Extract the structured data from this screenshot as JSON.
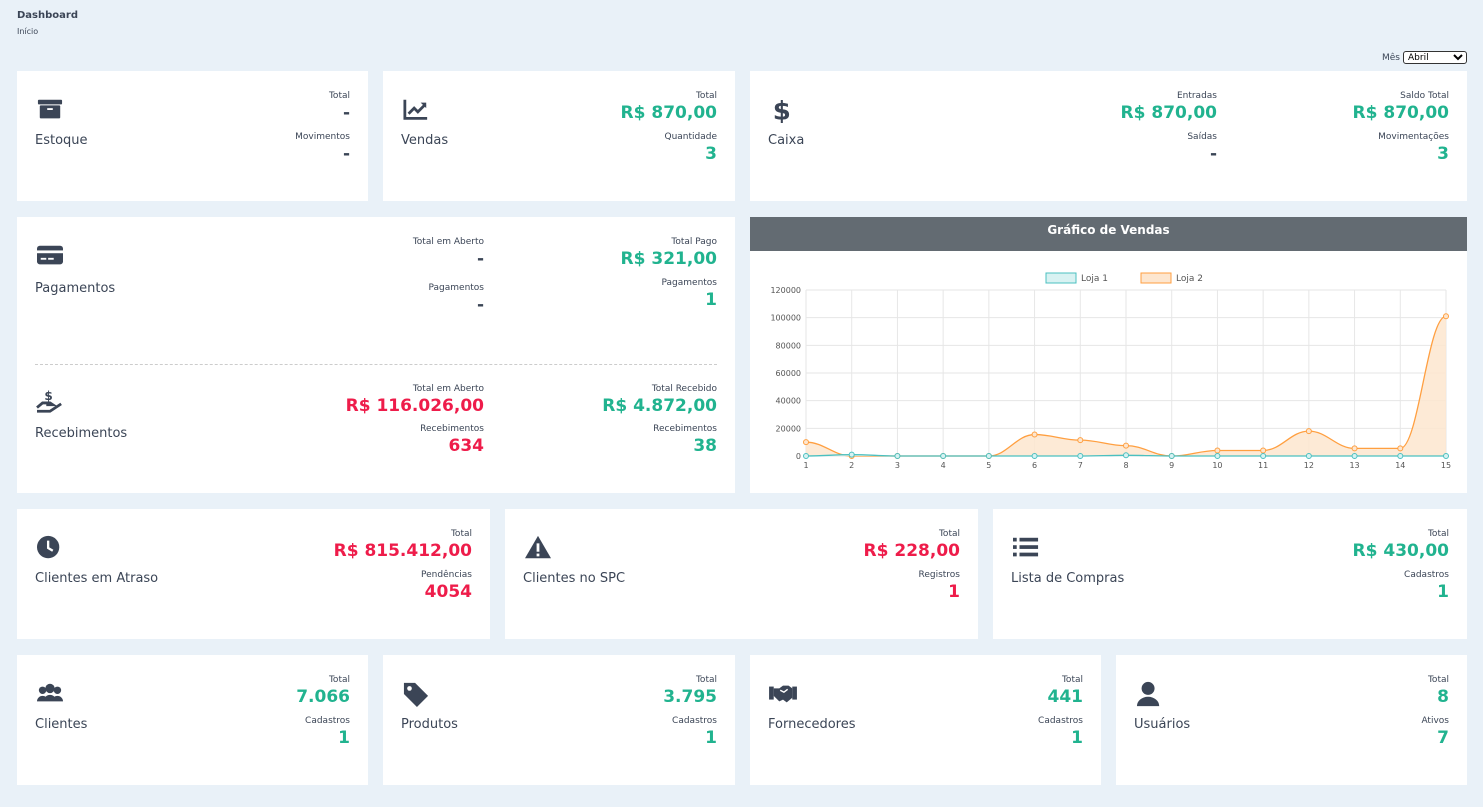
{
  "header": {
    "title": "Dashboard",
    "breadcrumb": "Início",
    "month_label": "Mês",
    "month_value": "Abril"
  },
  "colors": {
    "green": "#21b38f",
    "red": "#ee1c4a",
    "chart_header": "#636b72"
  },
  "estoque": {
    "label": "Estoque",
    "icon": "archive-box-icon",
    "k1": "Total",
    "v1": "-",
    "k2": "Movimentos",
    "v2": "-"
  },
  "vendas": {
    "label": "Vendas",
    "icon": "chart-line-icon",
    "k1": "Total",
    "v1": "R$ 870,00",
    "k2": "Quantidade",
    "v2": "3"
  },
  "caixa": {
    "label": "Caixa",
    "icon": "dollar-icon",
    "k1": "Entradas",
    "v1": "R$ 870,00",
    "k2": "Saídas",
    "v2": "-",
    "k3": "Saldo Total",
    "v3": "R$ 870,00",
    "k4": "Movimentações",
    "v4": "3"
  },
  "pagamentos": {
    "label": "Pagamentos",
    "icon": "credit-card-icon",
    "k1": "Total em Aberto",
    "v1": "-",
    "k2": "Pagamentos",
    "v2": "-",
    "k3": "Total Pago",
    "v3": "R$ 321,00",
    "k4": "Pagamentos",
    "v4": "1"
  },
  "recebimentos": {
    "label": "Recebimentos",
    "icon": "hand-dollar-icon",
    "k1": "Total em Aberto",
    "v1": "R$ 116.026,00",
    "k2": "Recebimentos",
    "v2": "634",
    "k3": "Total Recebido",
    "v3": "R$ 4.872,00",
    "k4": "Recebimentos",
    "v4": "38"
  },
  "atraso": {
    "label": "Clientes em Atraso",
    "icon": "clock-icon",
    "k1": "Total",
    "v1": "R$ 815.412,00",
    "k2": "Pendências",
    "v2": "4054"
  },
  "spc": {
    "label": "Clientes no SPC",
    "icon": "warning-icon",
    "k1": "Total",
    "v1": "R$ 228,00",
    "k2": "Registros",
    "v2": "1"
  },
  "compras": {
    "label": "Lista de Compras",
    "icon": "list-icon",
    "k1": "Total",
    "v1": "R$ 430,00",
    "k2": "Cadastros",
    "v2": "1"
  },
  "clientes": {
    "label": "Clientes",
    "icon": "users-icon",
    "k1": "Total",
    "v1": "7.066",
    "k2": "Cadastros",
    "v2": "1"
  },
  "produtos": {
    "label": "Produtos",
    "icon": "tag-icon",
    "k1": "Total",
    "v1": "3.795",
    "k2": "Cadastros",
    "v2": "1"
  },
  "fornecedores": {
    "label": "Fornecedores",
    "icon": "handshake-icon",
    "k1": "Total",
    "v1": "441",
    "k2": "Cadastros",
    "v2": "1"
  },
  "usuarios": {
    "label": "Usuários",
    "icon": "user-icon",
    "k1": "Total",
    "v1": "8",
    "k2": "Ativos",
    "v2": "7"
  },
  "chart_data": {
    "type": "line",
    "title": "Gráfico de Vendas",
    "legend_position": "top",
    "grid": true,
    "categories": [
      "1",
      "2",
      "3",
      "4",
      "5",
      "6",
      "7",
      "8",
      "9",
      "10",
      "11",
      "12",
      "13",
      "14",
      "15"
    ],
    "ylim": [
      0,
      120000
    ],
    "yticks": [
      "0",
      "20000",
      "40000",
      "60000",
      "80000",
      "100000",
      "120000"
    ],
    "series": [
      {
        "name": "Loja 1",
        "color": "#4bc0c0",
        "fill": "#d8f2f2",
        "values": [
          0,
          1000,
          0,
          0,
          0,
          0,
          0,
          500,
          0,
          0,
          0,
          0,
          0,
          0,
          0
        ]
      },
      {
        "name": "Loja 2",
        "color": "#ff9f40",
        "fill": "#fde6cf",
        "values": [
          10000,
          0,
          0,
          0,
          0,
          15500,
          11500,
          7500,
          0,
          4000,
          4000,
          18000,
          5500,
          5500,
          101000
        ]
      }
    ]
  }
}
